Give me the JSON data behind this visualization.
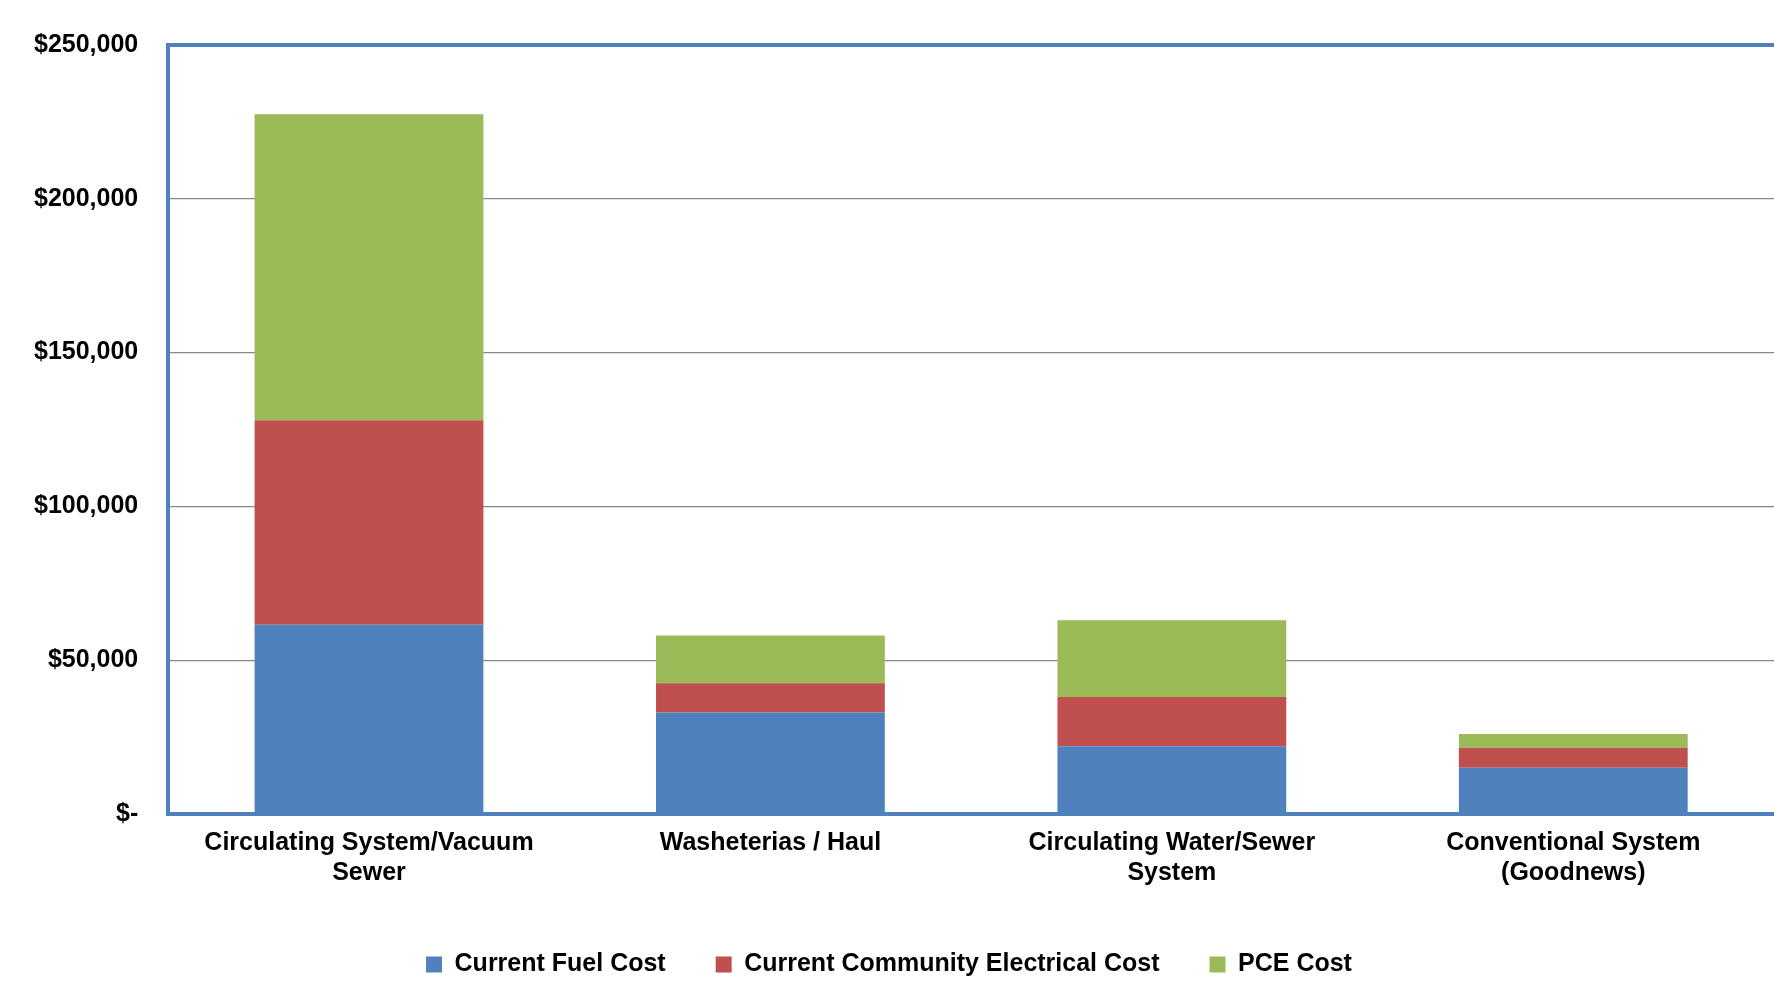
{
  "chart_data": {
    "type": "bar",
    "stacked": true,
    "categories": [
      "Circulating System/Vacuum Sewer",
      "Washeterias / Haul",
      "Circulating Water/Sewer System",
      "Conventional System (Goodnews)"
    ],
    "series": [
      {
        "name": "Current Fuel Cost",
        "color": "#4f81bd",
        "values": [
          61500,
          33000,
          22000,
          15000
        ]
      },
      {
        "name": "Current Community Electrical Cost",
        "color": "#c0504d",
        "values": [
          66500,
          9500,
          16000,
          6500
        ]
      },
      {
        "name": "PCE Cost",
        "color": "#9bbb59",
        "values": [
          99500,
          15500,
          25000,
          4500
        ]
      }
    ],
    "ylim": [
      0,
      250000
    ],
    "yticks": [
      {
        "value": 0,
        "label": "$-"
      },
      {
        "value": 50000,
        "label": "$50,000"
      },
      {
        "value": 100000,
        "label": "$100,000"
      },
      {
        "value": 150000,
        "label": "$150,000"
      },
      {
        "value": 200000,
        "label": "$200,000"
      },
      {
        "value": 250000,
        "label": "$250,000"
      }
    ],
    "grid": "y",
    "legend": "bottom"
  }
}
